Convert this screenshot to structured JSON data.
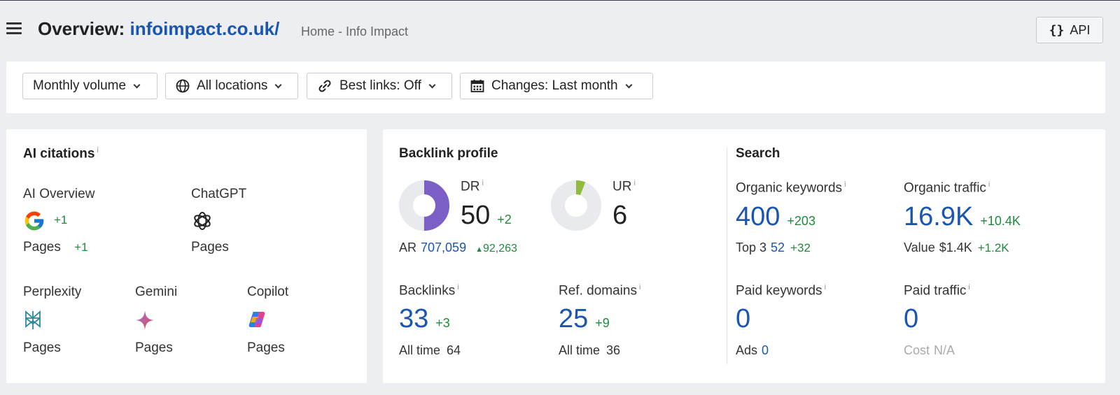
{
  "header": {
    "title_prefix": "Overview:",
    "domain": "infoimpact.co.uk/",
    "subtitle": "Home - Info Impact",
    "api_label": "API",
    "api_icon": "{}"
  },
  "filters": [
    {
      "label": "Monthly volume",
      "icon": "none"
    },
    {
      "label": "All locations",
      "icon": "globe-icon"
    },
    {
      "label": "Best links: Off",
      "icon": "link-icon"
    },
    {
      "label": "Changes: Last month",
      "icon": "calendar-icon"
    }
  ],
  "ai_citations": {
    "title": "AI citations",
    "info": "i",
    "sources": [
      {
        "name": "AI Overview",
        "icon": "google-icon",
        "delta": "+1",
        "pages_label": "Pages",
        "pages_delta": "+1"
      },
      {
        "name": "ChatGPT",
        "icon": "chatgpt-icon",
        "pages_label": "Pages"
      },
      {
        "name": "Perplexity",
        "icon": "perplexity-icon",
        "pages_label": "Pages"
      },
      {
        "name": "Gemini",
        "icon": "gemini-icon",
        "pages_label": "Pages"
      },
      {
        "name": "Copilot",
        "icon": "copilot-icon",
        "pages_label": "Pages"
      }
    ]
  },
  "backlink_profile": {
    "title": "Backlink profile",
    "dr": {
      "label": "DR",
      "value": "50",
      "delta": "+2",
      "gauge": 50,
      "color": "#7b5fc7"
    },
    "ur": {
      "label": "UR",
      "value": "6",
      "gauge": 6,
      "color": "#8fbc3c"
    },
    "ar": {
      "label": "AR",
      "value": "707,059",
      "delta": "92,263"
    },
    "backlinks": {
      "label": "Backlinks",
      "value": "33",
      "delta": "+3",
      "all_time_label": "All time",
      "all_time": "64"
    },
    "ref_domains": {
      "label": "Ref. domains",
      "value": "25",
      "delta": "+9",
      "all_time_label": "All time",
      "all_time": "36"
    }
  },
  "search": {
    "title": "Search",
    "organic_keywords": {
      "label": "Organic keywords",
      "value": "400",
      "delta": "+203",
      "sub_label": "Top 3",
      "sub_value": "52",
      "sub_delta": "+32"
    },
    "organic_traffic": {
      "label": "Organic traffic",
      "value": "16.9K",
      "delta": "+10.4K",
      "sub_label": "Value",
      "sub_value": "$1.4K",
      "sub_delta": "+1.2K"
    },
    "paid_keywords": {
      "label": "Paid keywords",
      "value": "0",
      "sub_label": "Ads",
      "sub_value": "0"
    },
    "paid_traffic": {
      "label": "Paid traffic",
      "value": "0",
      "sub_label": "Cost",
      "sub_value": "N/A"
    }
  },
  "colors": {
    "accent_blue": "#1a56b0",
    "positive_green": "#1e8a3c",
    "background": "#eceef2"
  }
}
